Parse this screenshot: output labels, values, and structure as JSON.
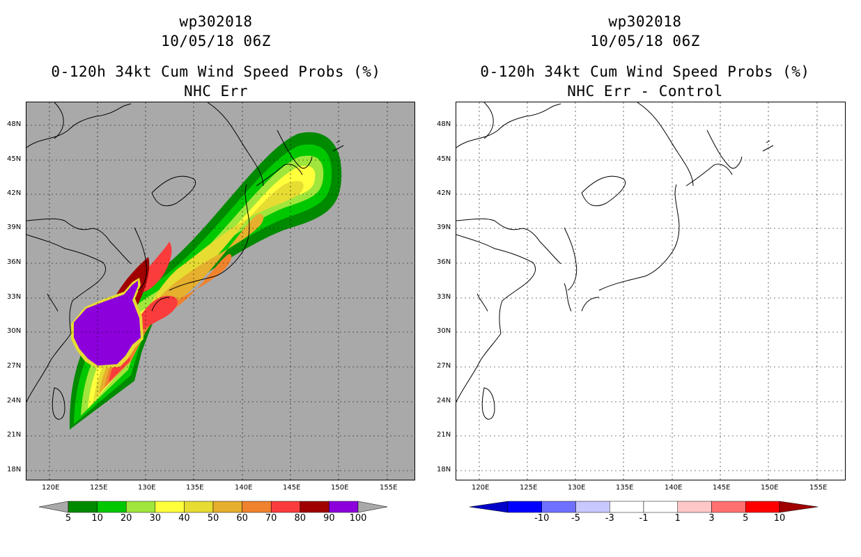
{
  "colors": {
    "land_gray": "#a9a9a9",
    "coast": "#000000",
    "prob_scale": [
      "#008a00",
      "#00c800",
      "#a0e63c",
      "#ffff3c",
      "#e6dc32",
      "#e6af2d",
      "#f0822d",
      "#fa3c3c",
      "#a00000",
      "#8c00dc"
    ],
    "diff_scale": [
      "#0000c8",
      "#0000ff",
      "#7070ff",
      "#c8c8ff",
      "#ffffff",
      "#ffc8c8",
      "#ff7070",
      "#ff0000",
      "#a00000"
    ]
  },
  "left_panel": {
    "storm_id": "wp302018",
    "datetime": "10/05/18 06Z",
    "product": "0-120h 34kt Cum Wind Speed Probs (%)",
    "subtitle": "NHC Err",
    "lat_labels": [
      "48N",
      "45N",
      "42N",
      "39N",
      "36N",
      "33N",
      "30N",
      "27N",
      "24N",
      "21N",
      "18N"
    ],
    "lon_labels": [
      "120E",
      "125E",
      "130E",
      "135E",
      "140E",
      "145E",
      "150E",
      "155E"
    ],
    "colorbar_labels": [
      "5",
      "10",
      "20",
      "30",
      "40",
      "50",
      "60",
      "70",
      "80",
      "90",
      "100"
    ]
  },
  "right_panel": {
    "storm_id": "wp302018",
    "datetime": "10/05/18 06Z",
    "product": "0-120h 34kt Cum Wind Speed Probs (%)",
    "subtitle": "NHC Err - Control",
    "lat_labels": [
      "48N",
      "45N",
      "42N",
      "39N",
      "36N",
      "33N",
      "30N",
      "27N",
      "24N",
      "21N",
      "18N"
    ],
    "lon_labels": [
      "120E",
      "125E",
      "130E",
      "135E",
      "140E",
      "145E",
      "150E",
      "155E"
    ],
    "colorbar_labels": [
      "-10",
      "-5",
      "-3",
      "-1",
      "1",
      "3",
      "5",
      "10"
    ]
  }
}
